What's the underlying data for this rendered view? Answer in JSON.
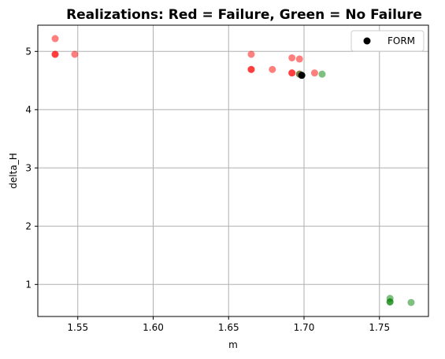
{
  "chart_data": {
    "type": "scatter",
    "title": "Realizations: Red = Failure, Green = No Failure",
    "xlabel": "m",
    "ylabel": "delta_H",
    "xlim": [
      1.5235,
      1.7825
    ],
    "ylim": [
      0.45,
      5.45
    ],
    "xticks": [
      1.55,
      1.6,
      1.65,
      1.7,
      1.75
    ],
    "xtick_labels": [
      "1.55",
      "1.60",
      "1.65",
      "1.70",
      "1.75"
    ],
    "yticks": [
      1,
      2,
      3,
      4,
      5
    ],
    "ytick_labels": [
      "1",
      "2",
      "3",
      "4",
      "5"
    ],
    "grid": true,
    "legend_position": "top-right",
    "series": [
      {
        "color": "#ff0000",
        "alpha": 0.5,
        "points": [
          [
            1.535,
            5.22
          ],
          [
            1.535,
            4.95
          ],
          [
            1.535,
            4.95
          ],
          [
            1.548,
            4.95
          ],
          [
            1.665,
            4.95
          ],
          [
            1.665,
            4.69
          ],
          [
            1.665,
            4.69
          ],
          [
            1.679,
            4.69
          ],
          [
            1.692,
            4.89
          ],
          [
            1.692,
            4.63
          ],
          [
            1.692,
            4.63
          ],
          [
            1.697,
            4.87
          ],
          [
            1.697,
            4.61
          ],
          [
            1.707,
            4.63
          ]
        ]
      },
      {
        "color": "#008000",
        "alpha": 0.5,
        "points": [
          [
            1.697,
            4.61
          ],
          [
            1.712,
            4.61
          ],
          [
            1.757,
            0.76
          ],
          [
            1.757,
            0.7
          ],
          [
            1.757,
            0.7
          ],
          [
            1.771,
            0.69
          ]
        ]
      },
      {
        "name": "FORM",
        "color": "#000000",
        "alpha": 1.0,
        "points": [
          [
            1.6985,
            4.59
          ]
        ]
      }
    ]
  }
}
